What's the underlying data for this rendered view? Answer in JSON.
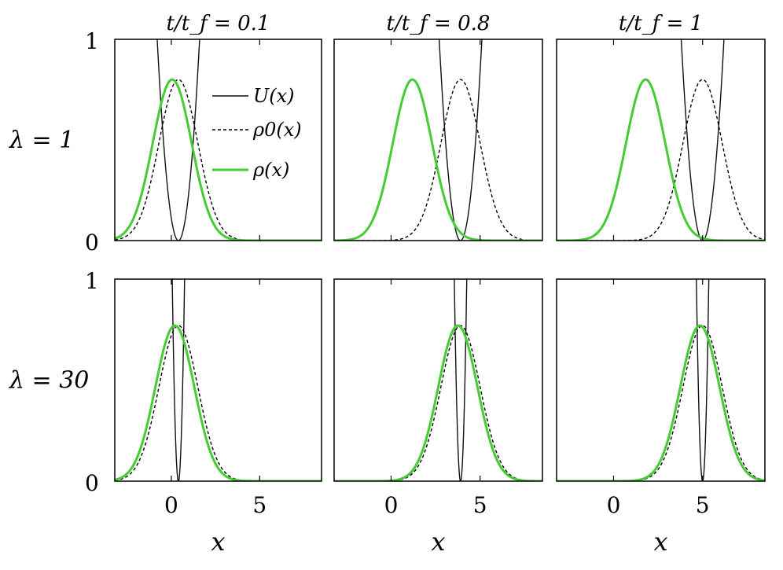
{
  "chart_data": {
    "type": "line",
    "title": "",
    "xlabel": "x",
    "ylabel": "",
    "xlim": [
      -3.2,
      8.5
    ],
    "ylim": [
      0,
      1
    ],
    "x_ticks": [
      0,
      5
    ],
    "x_tick_labels": [
      "0",
      "5"
    ],
    "y_ticks": [
      0,
      1
    ],
    "y_tick_labels": [
      "0",
      "1"
    ],
    "columns": [
      {
        "title": "t/t_f = 0.1",
        "trap_center": 0.4
      },
      {
        "title": "t/t_f = 0.8",
        "trap_center": 3.9
      },
      {
        "title": "t/t_f = 1",
        "trap_center": 5.0
      }
    ],
    "rows": [
      {
        "label": "λ = 1",
        "trap_width": 1.2,
        "density_peak": 0.8,
        "green_centers": [
          0.05,
          1.2,
          1.8
        ]
      },
      {
        "label": "λ = 30",
        "trap_width": 0.35,
        "density_peak": 0.77,
        "green_centers": [
          0.2,
          3.75,
          4.85
        ]
      }
    ],
    "gaussian_sigma": 1.1,
    "legend": {
      "location": "top-right of top-left panel",
      "entries": [
        "U(x)",
        "ρ0(x)",
        "ρ(x)"
      ]
    },
    "series": [
      {
        "name": "U(x)",
        "style": "solid",
        "color": "#111111"
      },
      {
        "name": "ρ0(x)",
        "style": "dashed",
        "color": "#000000"
      },
      {
        "name": "ρ(x)",
        "style": "solid",
        "color": "#44cc33"
      }
    ]
  }
}
